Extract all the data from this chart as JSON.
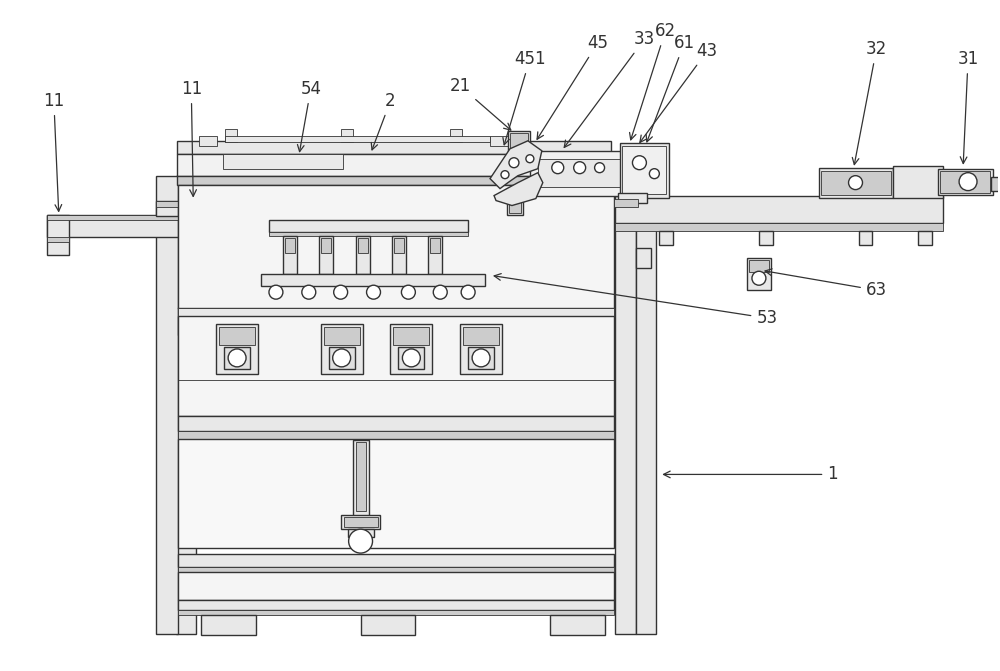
{
  "bg_color": "#ffffff",
  "lc": "#333333",
  "fill_light": "#e8e8e8",
  "fill_mid": "#cccccc",
  "fill_dark": "#aaaaaa",
  "figsize": [
    10.0,
    6.71
  ],
  "dpi": 100
}
